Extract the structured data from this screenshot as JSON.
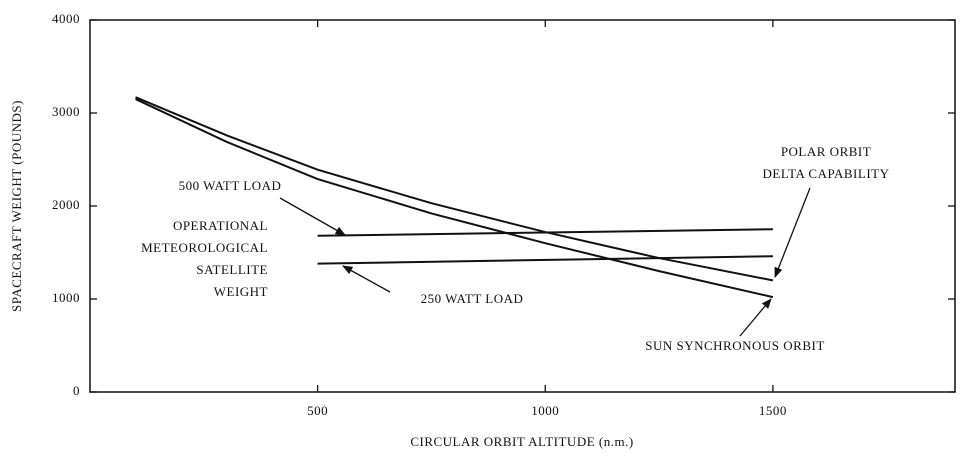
{
  "chart_data": {
    "type": "line",
    "xlabel": "CIRCULAR ORBIT ALTITUDE (n.m.)",
    "ylabel": "SPACECRAFT WEIGHT (POUNDS)",
    "xlim": [
      0,
      1900
    ],
    "xticks": [
      500,
      1000,
      1500
    ],
    "ylim": [
      0,
      4000
    ],
    "yticks": [
      0,
      1000,
      2000,
      3000,
      4000
    ],
    "grid": false,
    "series": [
      {
        "color": "#111111",
        "x": [
          100,
          300,
          500,
          750,
          1000,
          1250,
          1500
        ],
        "values": [
          3170,
          2760,
          2390,
          2030,
          1720,
          1440,
          1200
        ]
      },
      {
        "color": "#111111",
        "x": [
          100,
          300,
          500,
          750,
          1000,
          1250,
          1500
        ],
        "values": [
          3150,
          2690,
          2290,
          1920,
          1600,
          1300,
          1020
        ]
      },
      {
        "color": "#111111",
        "x": [
          500,
          1500
        ],
        "values": [
          1680,
          1750
        ]
      },
      {
        "color": "#111111",
        "x": [
          500,
          1500
        ],
        "values": [
          1380,
          1460
        ]
      }
    ],
    "annotations": [
      {
        "lines": [
          "POLAR ORBIT",
          "DELTA CAPABILITY"
        ]
      },
      {
        "lines": [
          "SUN SYNCHRONOUS ORBIT"
        ]
      },
      {
        "lines": [
          "500 WATT LOAD"
        ]
      },
      {
        "lines": [
          "250 WATT LOAD"
        ]
      },
      {
        "lines": [
          "OPERATIONAL",
          "METEOROLOGICAL",
          "SATELLITE",
          "WEIGHT"
        ]
      }
    ]
  }
}
